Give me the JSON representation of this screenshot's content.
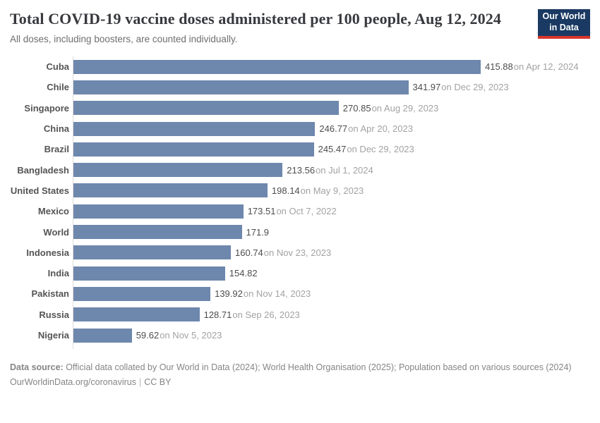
{
  "header": {
    "title": "Total COVID-19 vaccine doses administered per 100 people, Aug 12, 2024",
    "subtitle": "All doses, including boosters, are counted individually.",
    "logo": {
      "line1": "Our World",
      "line2": "in Data"
    }
  },
  "chart_data": {
    "type": "bar",
    "orientation": "horizontal",
    "title": "Total COVID-19 vaccine doses administered per 100 people, Aug 12, 2024",
    "subtitle": "All doses, including boosters, are counted individually.",
    "xlim": [
      0,
      415.88
    ],
    "grid": false,
    "legend": "none",
    "categories": [
      "Cuba",
      "Chile",
      "Singapore",
      "China",
      "Brazil",
      "Bangladesh",
      "United States",
      "Mexico",
      "World",
      "Indonesia",
      "India",
      "Pakistan",
      "Russia",
      "Nigeria"
    ],
    "values": [
      415.88,
      341.97,
      270.85,
      246.77,
      245.47,
      213.56,
      198.14,
      173.51,
      171.9,
      160.74,
      154.82,
      139.92,
      128.71,
      59.62
    ],
    "value_labels": [
      "415.88",
      "341.97",
      "270.85",
      "246.77",
      "245.47",
      "213.56",
      "198.14",
      "173.51",
      "171.9",
      "160.74",
      "154.82",
      "139.92",
      "128.71",
      "59.62"
    ],
    "date_labels": [
      "on Apr 12, 2024",
      "on Dec 29, 2023",
      "on Aug 29, 2023",
      "on Apr 20, 2023",
      "on Dec 29, 2023",
      "on Jul 1, 2024",
      "on May 9, 2023",
      "on Oct 7, 2022",
      "",
      "on Nov 23, 2023",
      "",
      "on Nov 14, 2023",
      "on Sep 26, 2023",
      "on Nov 5, 2023"
    ],
    "bar_color": "#6e87ad"
  },
  "footer": {
    "datasource_label": "Data source:",
    "datasource_text": " Official data collated by Our World in Data (2024); World Health Organisation (2025); Population based on various sources (2024)",
    "link": "OurWorldinData.org/coronavirus",
    "separator": "|",
    "license": "CC BY"
  },
  "colors": {
    "bar": "#6e87ad",
    "logo_background": "#1a3a63",
    "logo_accent": "#d8352c",
    "axis_line": "#dcdcdc"
  }
}
